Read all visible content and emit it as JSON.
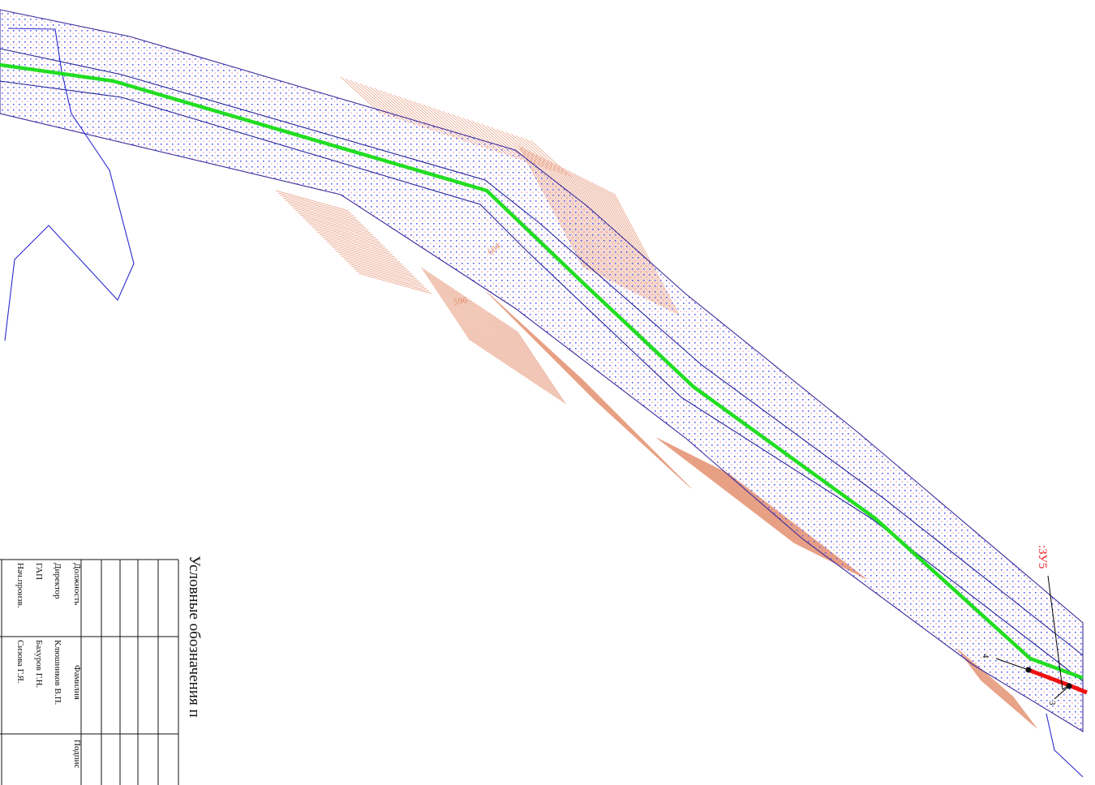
{
  "map": {
    "elevation_labels": [
      "604",
      "596"
    ],
    "land_plot_label": ":ЗУ5",
    "vertex_numbers": [
      "4",
      "3"
    ],
    "colors": {
      "axis": "#22dd22",
      "corridor_dots": "#5a5af0",
      "corridor_edge": "#3a2a9a",
      "contours": "#e8a085",
      "boundary": "#2a2ad0",
      "plot_segment": "#ee1111"
    }
  },
  "legend": {
    "title": "Условные обозначения п"
  },
  "title_block": {
    "headers": {
      "position": "Должность",
      "name": "Фамилия",
      "signature": "Подпис"
    },
    "rows": [
      {
        "position": "Директор",
        "name": "Клюшников В.П."
      },
      {
        "position": "ГАП",
        "name": "Бахуров Г.Н."
      },
      {
        "position": "Нач.произв.",
        "name": "Сизова Г.Я."
      }
    ]
  }
}
